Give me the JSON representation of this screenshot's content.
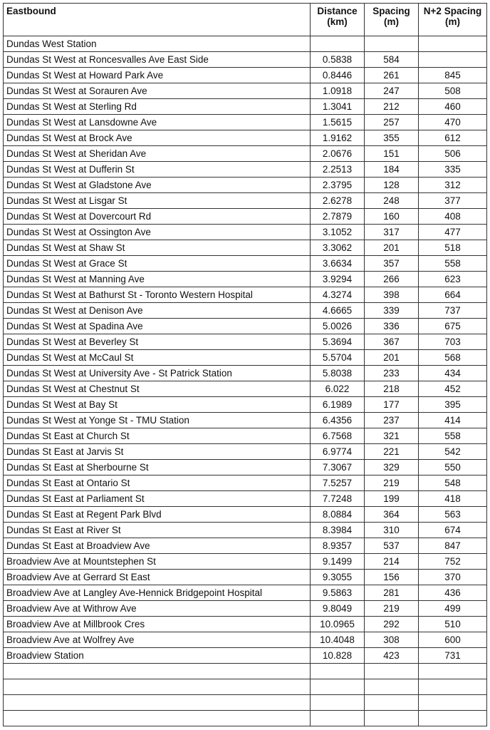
{
  "table": {
    "header": [
      [
        "Eastbound"
      ],
      [
        "Distance",
        "(km)"
      ],
      [
        "Spacing",
        "(m)"
      ],
      [
        "N+2 Spacing",
        "(m)"
      ]
    ],
    "rows": [
      [
        "Dundas West Station"
      ],
      [
        "Dundas St West at Roncesvalles Ave East Side",
        "0.5838",
        "584"
      ],
      [
        "Dundas St West at Howard Park Ave",
        "0.8446",
        "261",
        "845"
      ],
      [
        "Dundas St West at Sorauren Ave",
        "1.0918",
        "247",
        "508"
      ],
      [
        "Dundas St West at Sterling Rd",
        "1.3041",
        "212",
        "460"
      ],
      [
        "Dundas St West at Lansdowne Ave",
        "1.5615",
        "257",
        "470"
      ],
      [
        "Dundas St West at Brock Ave",
        "1.9162",
        "355",
        "612"
      ],
      [
        "Dundas St West at Sheridan Ave",
        "2.0676",
        "151",
        "506"
      ],
      [
        "Dundas St West at Dufferin St",
        "2.2513",
        "184",
        "335"
      ],
      [
        "Dundas St West at Gladstone Ave",
        "2.3795",
        "128",
        "312"
      ],
      [
        "Dundas St West at Lisgar St",
        "2.6278",
        "248",
        "377"
      ],
      [
        "Dundas St West at Dovercourt Rd",
        "2.7879",
        "160",
        "408"
      ],
      [
        "Dundas St West at Ossington Ave",
        "3.1052",
        "317",
        "477"
      ],
      [
        "Dundas St West at Shaw St",
        "3.3062",
        "201",
        "518"
      ],
      [
        "Dundas St West at Grace St",
        "3.6634",
        "357",
        "558"
      ],
      [
        "Dundas St West at Manning Ave",
        "3.9294",
        "266",
        "623"
      ],
      [
        "Dundas St West at Bathurst St - Toronto Western Hospital",
        "4.3274",
        "398",
        "664"
      ],
      [
        "Dundas St West at Denison Ave",
        "4.6665",
        "339",
        "737"
      ],
      [
        "Dundas St West at Spadina Ave",
        "5.0026",
        "336",
        "675"
      ],
      [
        "Dundas St West at Beverley St",
        "5.3694",
        "367",
        "703"
      ],
      [
        "Dundas St West at McCaul St",
        "5.5704",
        "201",
        "568"
      ],
      [
        "Dundas St West at University Ave - St Patrick Station",
        "5.8038",
        "233",
        "434"
      ],
      [
        "Dundas St West at Chestnut St",
        "6.022",
        "218",
        "452"
      ],
      [
        "Dundas St West at Bay St",
        "6.1989",
        "177",
        "395"
      ],
      [
        "Dundas St West at Yonge St - TMU Station",
        "6.4356",
        "237",
        "414"
      ],
      [
        "Dundas St East at Church St",
        "6.7568",
        "321",
        "558"
      ],
      [
        "Dundas St East at Jarvis St",
        "6.9774",
        "221",
        "542"
      ],
      [
        "Dundas St East at Sherbourne St",
        "7.3067",
        "329",
        "550"
      ],
      [
        "Dundas St East at Ontario St",
        "7.5257",
        "219",
        "548"
      ],
      [
        "Dundas St East at Parliament St",
        "7.7248",
        "199",
        "418"
      ],
      [
        "Dundas St East at Regent Park Blvd",
        "8.0884",
        "364",
        "563"
      ],
      [
        "Dundas St East at River St",
        "8.3984",
        "310",
        "674"
      ],
      [
        "Dundas St East at Broadview Ave",
        "8.9357",
        "537",
        "847"
      ],
      [
        "Broadview Ave at Mountstephen St",
        "9.1499",
        "214",
        "752"
      ],
      [
        "Broadview Ave at Gerrard St East",
        "9.3055",
        "156",
        "370"
      ],
      [
        "Broadview Ave at Langley Ave-Hennick Bridgepoint Hospital",
        "9.5863",
        "281",
        "436"
      ],
      [
        "Broadview Ave at Withrow Ave",
        "9.8049",
        "219",
        "499"
      ],
      [
        "Broadview Ave at Millbrook Cres",
        "10.0965",
        "292",
        "510"
      ],
      [
        "Broadview Ave at Wolfrey Ave",
        "10.4048",
        "308",
        "600"
      ],
      [
        "Broadview Station",
        "10.828",
        "423",
        "731"
      ]
    ]
  }
}
